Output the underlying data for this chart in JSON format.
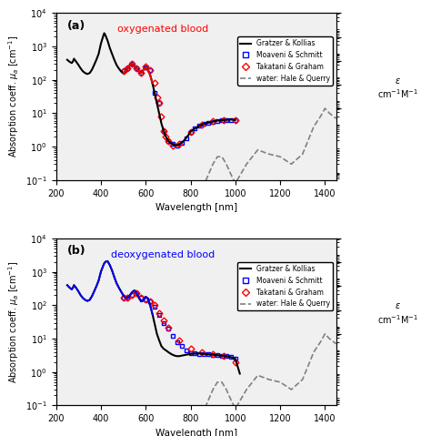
{
  "title_a": "oxygenated blood",
  "title_b": "deoxygenated blood",
  "title_a_color": "red",
  "title_b_color": "blue",
  "label_a": "(a)",
  "label_b": "(b)",
  "xlabel": "Wavelength [nm]",
  "ylabel": "Absorption coeff. μ_a [cm⁻¹]",
  "right_label_top": "ε",
  "right_label_bot": "cm⁻¹M⁻¹",
  "ylim": [
    0.1,
    10000.0
  ],
  "xlim": [
    200,
    1450
  ],
  "right_yticks": [
    100.0,
    1000.0,
    10000.0,
    100000.0,
    1000000.0
  ],
  "legend_entries": [
    "Gratzer & Kollias",
    "Moaveni & Schmitt",
    "Takatani & Graham",
    "water: Hale & Querry"
  ],
  "bg_color": "#f0f0f0",
  "fig_color": "white"
}
